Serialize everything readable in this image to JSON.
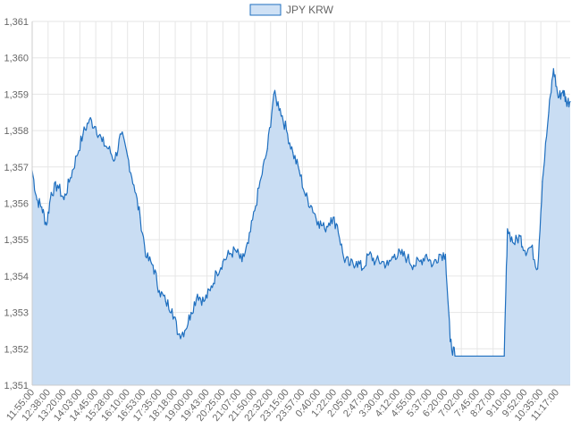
{
  "colors": {
    "line": "#1f6fbf",
    "fill": "#c9ddf3",
    "legend_fill": "#cfe1f5",
    "grid": "#e6e6e6",
    "axis": "#cccccc",
    "text": "#666666",
    "background": "#ffffff"
  },
  "chart_data": {
    "type": "area",
    "title": "",
    "xlabel": "",
    "ylabel": "",
    "legend": {
      "position": "top-center"
    },
    "grid": true,
    "ylim": [
      1351,
      1361
    ],
    "y_ticks": [
      "1,351",
      "1,352",
      "1,353",
      "1,354",
      "1,355",
      "1,356",
      "1,357",
      "1,358",
      "1,359",
      "1,360",
      "1,361"
    ],
    "x_tick_labels": [
      "11:55:00",
      "12:38:00",
      "13:20:00",
      "14:03:00",
      "14:45:00",
      "15:28:00",
      "16:10:00",
      "16:53:00",
      "17:35:00",
      "18:18:00",
      "19:00:00",
      "19:43:00",
      "20:25:00",
      "21:07:00",
      "21:50:00",
      "22:32:00",
      "23:15:00",
      "23:57:00",
      "0:40:00",
      "1:22:00",
      "2:05:00",
      "2:47:00",
      "3:30:00",
      "4:12:00",
      "4:55:00",
      "5:37:00",
      "6:20:00",
      "7:02:00",
      "7:45:00",
      "8:27:00",
      "9:10:00",
      "9:52:00",
      "10:35:00",
      "11:17:00"
    ],
    "series": [
      {
        "name": "JPY KRW",
        "values": [
          [
            0,
            1356.9
          ],
          [
            0.3,
            1356.1
          ],
          [
            0.6,
            1355.9
          ],
          [
            0.9,
            1355.4
          ],
          [
            1.2,
            1356.3
          ],
          [
            1.6,
            1356.5
          ],
          [
            2.0,
            1356.1
          ],
          [
            2.4,
            1356.7
          ],
          [
            2.8,
            1357.3
          ],
          [
            3.2,
            1357.9
          ],
          [
            3.6,
            1358.3
          ],
          [
            4.0,
            1358.1
          ],
          [
            4.4,
            1357.7
          ],
          [
            4.8,
            1357.5
          ],
          [
            5.2,
            1357.2
          ],
          [
            5.6,
            1357.9
          ],
          [
            6.0,
            1357.3
          ],
          [
            6.4,
            1356.5
          ],
          [
            6.8,
            1355.6
          ],
          [
            7.2,
            1354.5
          ],
          [
            7.6,
            1354.3
          ],
          [
            8.0,
            1353.6
          ],
          [
            8.4,
            1353.3
          ],
          [
            8.8,
            1353.1
          ],
          [
            9.2,
            1352.4
          ],
          [
            9.6,
            1352.5
          ],
          [
            10.0,
            1353.0
          ],
          [
            10.4,
            1353.5
          ],
          [
            10.8,
            1353.3
          ],
          [
            11.2,
            1353.6
          ],
          [
            11.6,
            1354.1
          ],
          [
            12.0,
            1354.4
          ],
          [
            12.4,
            1354.6
          ],
          [
            12.8,
            1354.7
          ],
          [
            13.2,
            1354.4
          ],
          [
            13.6,
            1354.9
          ],
          [
            14.0,
            1355.8
          ],
          [
            14.4,
            1356.7
          ],
          [
            14.8,
            1357.5
          ],
          [
            15.2,
            1359.0
          ],
          [
            15.6,
            1358.6
          ],
          [
            16.0,
            1358.0
          ],
          [
            16.4,
            1357.4
          ],
          [
            16.8,
            1356.9
          ],
          [
            17.2,
            1356.2
          ],
          [
            17.6,
            1355.9
          ],
          [
            18.0,
            1355.5
          ],
          [
            18.4,
            1355.3
          ],
          [
            18.8,
            1355.6
          ],
          [
            19.2,
            1355.4
          ],
          [
            19.6,
            1354.5
          ],
          [
            20.0,
            1354.3
          ],
          [
            20.4,
            1354.4
          ],
          [
            20.8,
            1354.2
          ],
          [
            21.2,
            1354.6
          ],
          [
            21.6,
            1354.4
          ],
          [
            22.0,
            1354.4
          ],
          [
            22.4,
            1354.3
          ],
          [
            22.8,
            1354.6
          ],
          [
            23.2,
            1354.6
          ],
          [
            23.6,
            1354.5
          ],
          [
            24.0,
            1354.3
          ],
          [
            24.4,
            1354.4
          ],
          [
            24.8,
            1354.6
          ],
          [
            25.2,
            1354.3
          ],
          [
            25.6,
            1354.6
          ],
          [
            26.0,
            1354.6
          ],
          [
            26.3,
            1352.2
          ],
          [
            26.6,
            1351.8
          ],
          [
            27.0,
            1351.8
          ],
          [
            28.0,
            1351.8
          ],
          [
            29.0,
            1351.8
          ],
          [
            29.7,
            1351.8
          ],
          [
            29.9,
            1355.3
          ],
          [
            30.3,
            1354.9
          ],
          [
            30.7,
            1355.1
          ],
          [
            31.0,
            1354.7
          ],
          [
            31.4,
            1354.8
          ],
          [
            31.8,
            1354.2
          ],
          [
            32.1,
            1356.6
          ],
          [
            32.5,
            1358.5
          ],
          [
            32.8,
            1359.7
          ],
          [
            33.1,
            1358.9
          ],
          [
            33.4,
            1359.1
          ],
          [
            33.6,
            1358.8
          ],
          [
            33.85,
            1358.8
          ]
        ]
      }
    ]
  }
}
